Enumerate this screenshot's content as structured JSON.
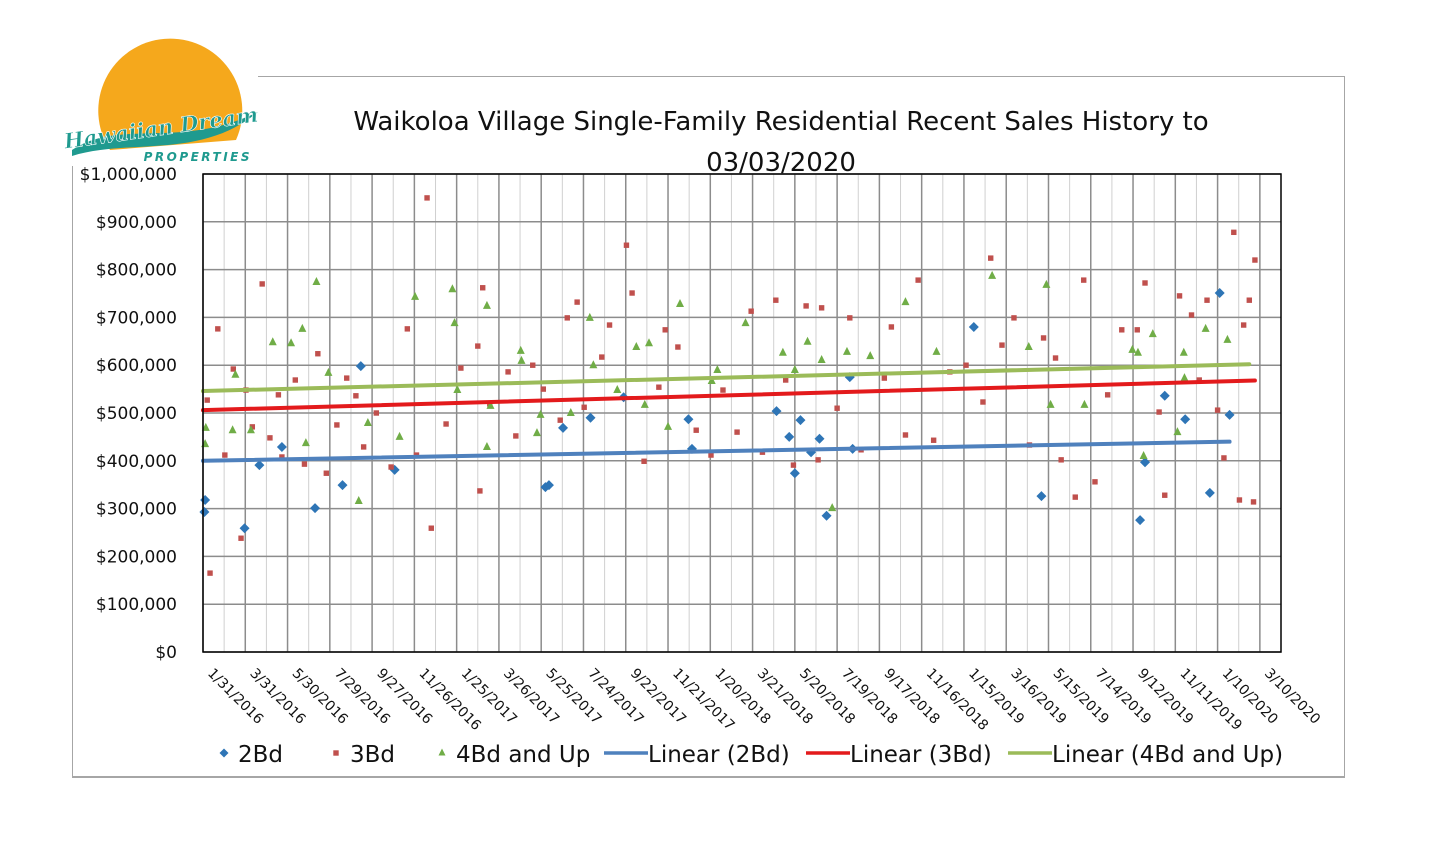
{
  "logo": {
    "text_main": "Hawaiian Dream",
    "text_sub": "PROPERTIES",
    "sun_color": "#f5a81c",
    "wave_color": "#1f9a8f"
  },
  "chart_data": {
    "type": "scatter",
    "title_line1": "Waikoloa Village Single-Family Residential Recent Sales History to",
    "title_line2": "03/03/2020",
    "xlabel": "",
    "ylabel": "",
    "ylim": [
      0,
      1000000
    ],
    "yticks": [
      0,
      100000,
      200000,
      300000,
      400000,
      500000,
      600000,
      700000,
      800000,
      900000,
      1000000
    ],
    "ytick_labels": [
      "$0",
      "$100,000",
      "$200,000",
      "$300,000",
      "$400,000",
      "$500,000",
      "$600,000",
      "$700,000",
      "$800,000",
      "$900,000",
      "$1,000,000"
    ],
    "xlim": [
      "2016-01-31",
      "2020-04-09"
    ],
    "xticks": [
      "2016-01-31",
      "2016-03-31",
      "2016-05-30",
      "2016-07-29",
      "2016-09-27",
      "2016-11-26",
      "2017-01-25",
      "2017-03-26",
      "2017-05-25",
      "2017-07-24",
      "2017-09-22",
      "2017-11-21",
      "2018-01-20",
      "2018-03-21",
      "2018-05-20",
      "2018-07-19",
      "2018-09-17",
      "2018-11-16",
      "2019-01-15",
      "2019-03-16",
      "2019-05-15",
      "2019-07-14",
      "2019-09-12",
      "2019-11-11",
      "2020-01-10",
      "2020-03-10"
    ],
    "xtick_labels": [
      "1/31/2016",
      "3/31/2016",
      "5/30/2016",
      "7/29/2016",
      "9/27/2016",
      "11/26/2016",
      "1/25/2017",
      "3/26/2017",
      "5/25/2017",
      "7/24/2017",
      "9/22/2017",
      "11/21/2017",
      "1/20/2018",
      "3/21/2018",
      "5/20/2018",
      "7/19/2018",
      "9/17/2018",
      "11/16/2018",
      "1/15/2019",
      "3/16/2019",
      "5/15/2019",
      "7/14/2019",
      "9/12/2019",
      "11/11/2019",
      "1/10/2020",
      "3/10/2020"
    ],
    "grid": true,
    "legend_position": "bottom",
    "series": [
      {
        "name": "2Bd",
        "marker": "diamond",
        "color": "#2e75b6",
        "points": [
          [
            "2016-02-02",
            293000
          ],
          [
            "2016-02-03",
            318000
          ],
          [
            "2016-03-30",
            259000
          ],
          [
            "2016-04-20",
            391000
          ],
          [
            "2016-05-22",
            429000
          ],
          [
            "2016-07-08",
            301000
          ],
          [
            "2016-08-16",
            349000
          ],
          [
            "2016-09-11",
            598000
          ],
          [
            "2016-10-29",
            381000
          ],
          [
            "2017-05-31",
            345000
          ],
          [
            "2017-06-05",
            349000
          ],
          [
            "2017-06-25",
            469000
          ],
          [
            "2017-08-03",
            490000
          ],
          [
            "2017-09-19",
            533000
          ],
          [
            "2017-12-20",
            487000
          ],
          [
            "2017-12-25",
            425000
          ],
          [
            "2018-04-24",
            504000
          ],
          [
            "2018-05-12",
            450000
          ],
          [
            "2018-05-20",
            374000
          ],
          [
            "2018-05-28",
            485000
          ],
          [
            "2018-06-12",
            418000
          ],
          [
            "2018-06-24",
            446000
          ],
          [
            "2018-07-04",
            285000
          ],
          [
            "2018-08-06",
            575000
          ],
          [
            "2018-08-10",
            425000
          ],
          [
            "2019-01-29",
            680000
          ],
          [
            "2019-05-05",
            326000
          ],
          [
            "2019-09-22",
            276000
          ],
          [
            "2019-09-29",
            397000
          ],
          [
            "2019-10-27",
            536000
          ],
          [
            "2019-11-25",
            487000
          ],
          [
            "2019-12-30",
            333000
          ],
          [
            "2020-01-13",
            751000
          ],
          [
            "2020-01-27",
            496000
          ]
        ]
      },
      {
        "name": "3Bd",
        "marker": "square",
        "color": "#c0504d",
        "points": [
          [
            "2016-02-06",
            527000
          ],
          [
            "2016-02-10",
            165000
          ],
          [
            "2016-02-21",
            676000
          ],
          [
            "2016-03-02",
            412000
          ],
          [
            "2016-03-14",
            592000
          ],
          [
            "2016-03-25",
            238000
          ],
          [
            "2016-04-01",
            548000
          ],
          [
            "2016-04-10",
            471000
          ],
          [
            "2016-04-24",
            770000
          ],
          [
            "2016-05-05",
            448000
          ],
          [
            "2016-05-17",
            538000
          ],
          [
            "2016-05-22",
            408000
          ],
          [
            "2016-06-10",
            569000
          ],
          [
            "2016-06-23",
            393000
          ],
          [
            "2016-07-12",
            624000
          ],
          [
            "2016-07-24",
            374000
          ],
          [
            "2016-08-08",
            475000
          ],
          [
            "2016-08-22",
            573000
          ],
          [
            "2016-09-04",
            536000
          ],
          [
            "2016-09-15",
            429000
          ],
          [
            "2016-10-03",
            500000
          ],
          [
            "2016-10-24",
            387000
          ],
          [
            "2016-11-16",
            676000
          ],
          [
            "2016-11-29",
            412000
          ],
          [
            "2016-12-14",
            950000
          ],
          [
            "2016-12-20",
            259000
          ],
          [
            "2017-01-10",
            477000
          ],
          [
            "2017-01-31",
            594000
          ],
          [
            "2017-02-24",
            640000
          ],
          [
            "2017-02-27",
            337000
          ],
          [
            "2017-03-03",
            762000
          ],
          [
            "2017-03-13",
            519000
          ],
          [
            "2017-04-08",
            586000
          ],
          [
            "2017-04-19",
            452000
          ],
          [
            "2017-05-13",
            600000
          ],
          [
            "2017-05-28",
            550000
          ],
          [
            "2017-06-21",
            485000
          ],
          [
            "2017-07-01",
            699000
          ],
          [
            "2017-07-15",
            732000
          ],
          [
            "2017-07-25",
            512000
          ],
          [
            "2017-08-19",
            617000
          ],
          [
            "2017-08-30",
            684000
          ],
          [
            "2017-09-23",
            851000
          ],
          [
            "2017-10-01",
            751000
          ],
          [
            "2017-10-18",
            399000
          ],
          [
            "2017-11-08",
            554000
          ],
          [
            "2017-11-17",
            674000
          ],
          [
            "2017-12-05",
            638000
          ],
          [
            "2017-12-31",
            464000
          ],
          [
            "2018-01-21",
            412000
          ],
          [
            "2018-02-07",
            548000
          ],
          [
            "2018-02-27",
            460000
          ],
          [
            "2018-03-19",
            713000
          ],
          [
            "2018-04-04",
            418000
          ],
          [
            "2018-04-23",
            736000
          ],
          [
            "2018-05-07",
            569000
          ],
          [
            "2018-05-18",
            391000
          ],
          [
            "2018-06-05",
            724000
          ],
          [
            "2018-06-22",
            402000
          ],
          [
            "2018-06-27",
            720000
          ],
          [
            "2018-07-19",
            510000
          ],
          [
            "2018-08-06",
            699000
          ],
          [
            "2018-08-22",
            423000
          ],
          [
            "2018-09-24",
            573000
          ],
          [
            "2018-10-04",
            680000
          ],
          [
            "2018-10-24",
            454000
          ],
          [
            "2018-11-11",
            778000
          ],
          [
            "2018-12-03",
            443000
          ],
          [
            "2018-12-26",
            586000
          ],
          [
            "2019-01-18",
            600000
          ],
          [
            "2019-02-11",
            523000
          ],
          [
            "2019-02-22",
            824000
          ],
          [
            "2019-03-10",
            642000
          ],
          [
            "2019-03-27",
            699000
          ],
          [
            "2019-04-18",
            433000
          ],
          [
            "2019-05-08",
            657000
          ],
          [
            "2019-05-25",
            615000
          ],
          [
            "2019-06-02",
            402000
          ],
          [
            "2019-06-22",
            324000
          ],
          [
            "2019-07-04",
            778000
          ],
          [
            "2019-07-20",
            356000
          ],
          [
            "2019-08-07",
            538000
          ],
          [
            "2019-08-27",
            674000
          ],
          [
            "2019-09-18",
            674000
          ],
          [
            "2019-09-29",
            772000
          ],
          [
            "2019-10-19",
            502000
          ],
          [
            "2019-10-27",
            328000
          ],
          [
            "2019-11-17",
            745000
          ],
          [
            "2019-12-04",
            705000
          ],
          [
            "2019-12-15",
            569000
          ],
          [
            "2019-12-26",
            736000
          ],
          [
            "2020-01-10",
            506000
          ],
          [
            "2020-01-19",
            406000
          ],
          [
            "2020-02-02",
            878000
          ],
          [
            "2020-02-10",
            318000
          ],
          [
            "2020-02-16",
            684000
          ],
          [
            "2020-02-24",
            736000
          ],
          [
            "2020-03-01",
            314000
          ],
          [
            "2020-03-03",
            820000
          ]
        ]
      },
      {
        "name": "4Bd and Up",
        "marker": "triangle",
        "color": "#70ad47",
        "points": [
          [
            "2016-02-03",
            435000
          ],
          [
            "2016-02-04",
            469000
          ],
          [
            "2016-03-13",
            464000
          ],
          [
            "2016-03-17",
            580000
          ],
          [
            "2016-04-08",
            464000
          ],
          [
            "2016-05-09",
            648000
          ],
          [
            "2016-06-04",
            646000
          ],
          [
            "2016-06-20",
            676000
          ],
          [
            "2016-06-25",
            437000
          ],
          [
            "2016-07-10",
            774000
          ],
          [
            "2016-07-27",
            584000
          ],
          [
            "2016-09-08",
            316000
          ],
          [
            "2016-09-21",
            479000
          ],
          [
            "2016-11-05",
            450000
          ],
          [
            "2016-11-27",
            743000
          ],
          [
            "2017-01-19",
            759000
          ],
          [
            "2017-01-22",
            688000
          ],
          [
            "2017-01-26",
            548000
          ],
          [
            "2017-03-09",
            724000
          ],
          [
            "2017-03-09",
            429000
          ],
          [
            "2017-03-14",
            515000
          ],
          [
            "2017-04-26",
            630000
          ],
          [
            "2017-04-27",
            609000
          ],
          [
            "2017-05-19",
            458000
          ],
          [
            "2017-05-24",
            496000
          ],
          [
            "2017-07-06",
            500000
          ],
          [
            "2017-08-02",
            699000
          ],
          [
            "2017-08-07",
            600000
          ],
          [
            "2017-09-10",
            548000
          ],
          [
            "2017-10-07",
            638000
          ],
          [
            "2017-10-19",
            517000
          ],
          [
            "2017-10-25",
            646000
          ],
          [
            "2017-11-21",
            471000
          ],
          [
            "2017-12-08",
            728000
          ],
          [
            "2018-01-22",
            567000
          ],
          [
            "2018-01-30",
            590000
          ],
          [
            "2018-03-11",
            688000
          ],
          [
            "2018-05-03",
            626000
          ],
          [
            "2018-05-20",
            590000
          ],
          [
            "2018-06-07",
            649000
          ],
          [
            "2018-06-27",
            611000
          ],
          [
            "2018-07-12",
            301000
          ],
          [
            "2018-08-02",
            628000
          ],
          [
            "2018-09-04",
            619000
          ],
          [
            "2018-10-24",
            732000
          ],
          [
            "2018-12-07",
            628000
          ],
          [
            "2019-02-24",
            787000
          ],
          [
            "2019-04-17",
            638000
          ],
          [
            "2019-05-12",
            768000
          ],
          [
            "2019-05-18",
            517000
          ],
          [
            "2019-07-05",
            517000
          ],
          [
            "2019-09-11",
            632000
          ],
          [
            "2019-09-19",
            626000
          ],
          [
            "2019-09-27",
            410000
          ],
          [
            "2019-10-10",
            665000
          ],
          [
            "2019-11-14",
            460000
          ],
          [
            "2019-11-23",
            626000
          ],
          [
            "2019-11-24",
            573000
          ],
          [
            "2019-12-24",
            676000
          ],
          [
            "2020-01-24",
            653000
          ]
        ]
      }
    ],
    "trendlines": [
      {
        "name": "Linear (2Bd)",
        "color": "#4f81bd",
        "start": [
          "2016-01-31",
          400000
        ],
        "end": [
          "2020-01-27",
          440000
        ]
      },
      {
        "name": "Linear (3Bd)",
        "color": "#e31a1c",
        "start": [
          "2016-01-31",
          506000
        ],
        "end": [
          "2020-03-03",
          568000
        ]
      },
      {
        "name": "Linear (4Bd and Up)",
        "color": "#9bbb59",
        "start": [
          "2016-01-31",
          546000
        ],
        "end": [
          "2020-02-24",
          602000
        ]
      }
    ]
  }
}
